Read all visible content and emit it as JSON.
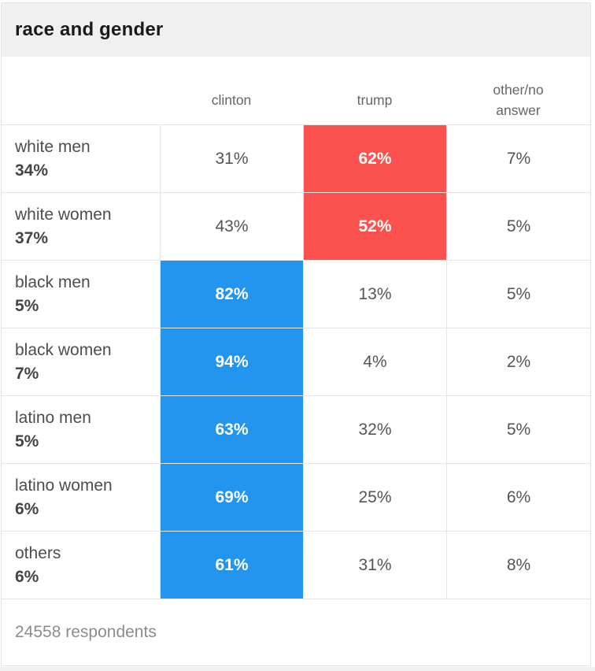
{
  "title": "race and gender",
  "columns": [
    "clinton",
    "trump",
    "other/no answer"
  ],
  "table": {
    "rows": [
      {
        "label": "white men",
        "share": "34%",
        "clinton": "31%",
        "trump": "62%",
        "other": "7%",
        "highlight": "trump"
      },
      {
        "label": "white women",
        "share": "37%",
        "clinton": "43%",
        "trump": "52%",
        "other": "5%",
        "highlight": "trump"
      },
      {
        "label": "black men",
        "share": "5%",
        "clinton": "82%",
        "trump": "13%",
        "other": "5%",
        "highlight": "clinton"
      },
      {
        "label": "black women",
        "share": "7%",
        "clinton": "94%",
        "trump": "4%",
        "other": "2%",
        "highlight": "clinton"
      },
      {
        "label": "latino men",
        "share": "5%",
        "clinton": "63%",
        "trump": "32%",
        "other": "5%",
        "highlight": "clinton"
      },
      {
        "label": "latino women",
        "share": "6%",
        "clinton": "69%",
        "trump": "25%",
        "other": "6%",
        "highlight": "clinton"
      },
      {
        "label": "others",
        "share": "6%",
        "clinton": "61%",
        "trump": "31%",
        "other": "8%",
        "highlight": "clinton"
      }
    ]
  },
  "footer": "24558 respondents",
  "colors": {
    "clinton_highlight": "#2395ef",
    "trump_highlight": "#fb514f",
    "header_background": "#f0f0f0",
    "border": "#e6e6e6"
  },
  "chart_data": {
    "type": "table",
    "title": "race and gender",
    "columns": [
      "clinton",
      "trump",
      "other/no answer"
    ],
    "rows": [
      {
        "group": "white men",
        "group_share_pct": 34,
        "clinton_pct": 31,
        "trump_pct": 62,
        "other_no_answer_pct": 7,
        "highlighted_winner": "trump"
      },
      {
        "group": "white women",
        "group_share_pct": 37,
        "clinton_pct": 43,
        "trump_pct": 52,
        "other_no_answer_pct": 5,
        "highlighted_winner": "trump"
      },
      {
        "group": "black men",
        "group_share_pct": 5,
        "clinton_pct": 82,
        "trump_pct": 13,
        "other_no_answer_pct": 5,
        "highlighted_winner": "clinton"
      },
      {
        "group": "black women",
        "group_share_pct": 7,
        "clinton_pct": 94,
        "trump_pct": 4,
        "other_no_answer_pct": 2,
        "highlighted_winner": "clinton"
      },
      {
        "group": "latino men",
        "group_share_pct": 5,
        "clinton_pct": 63,
        "trump_pct": 32,
        "other_no_answer_pct": 5,
        "highlighted_winner": "clinton"
      },
      {
        "group": "latino women",
        "group_share_pct": 6,
        "clinton_pct": 69,
        "trump_pct": 25,
        "other_no_answer_pct": 6,
        "highlighted_winner": "clinton"
      },
      {
        "group": "others",
        "group_share_pct": 6,
        "clinton_pct": 61,
        "trump_pct": 31,
        "other_no_answer_pct": 8,
        "highlighted_winner": "clinton"
      }
    ],
    "respondents": 24558
  }
}
